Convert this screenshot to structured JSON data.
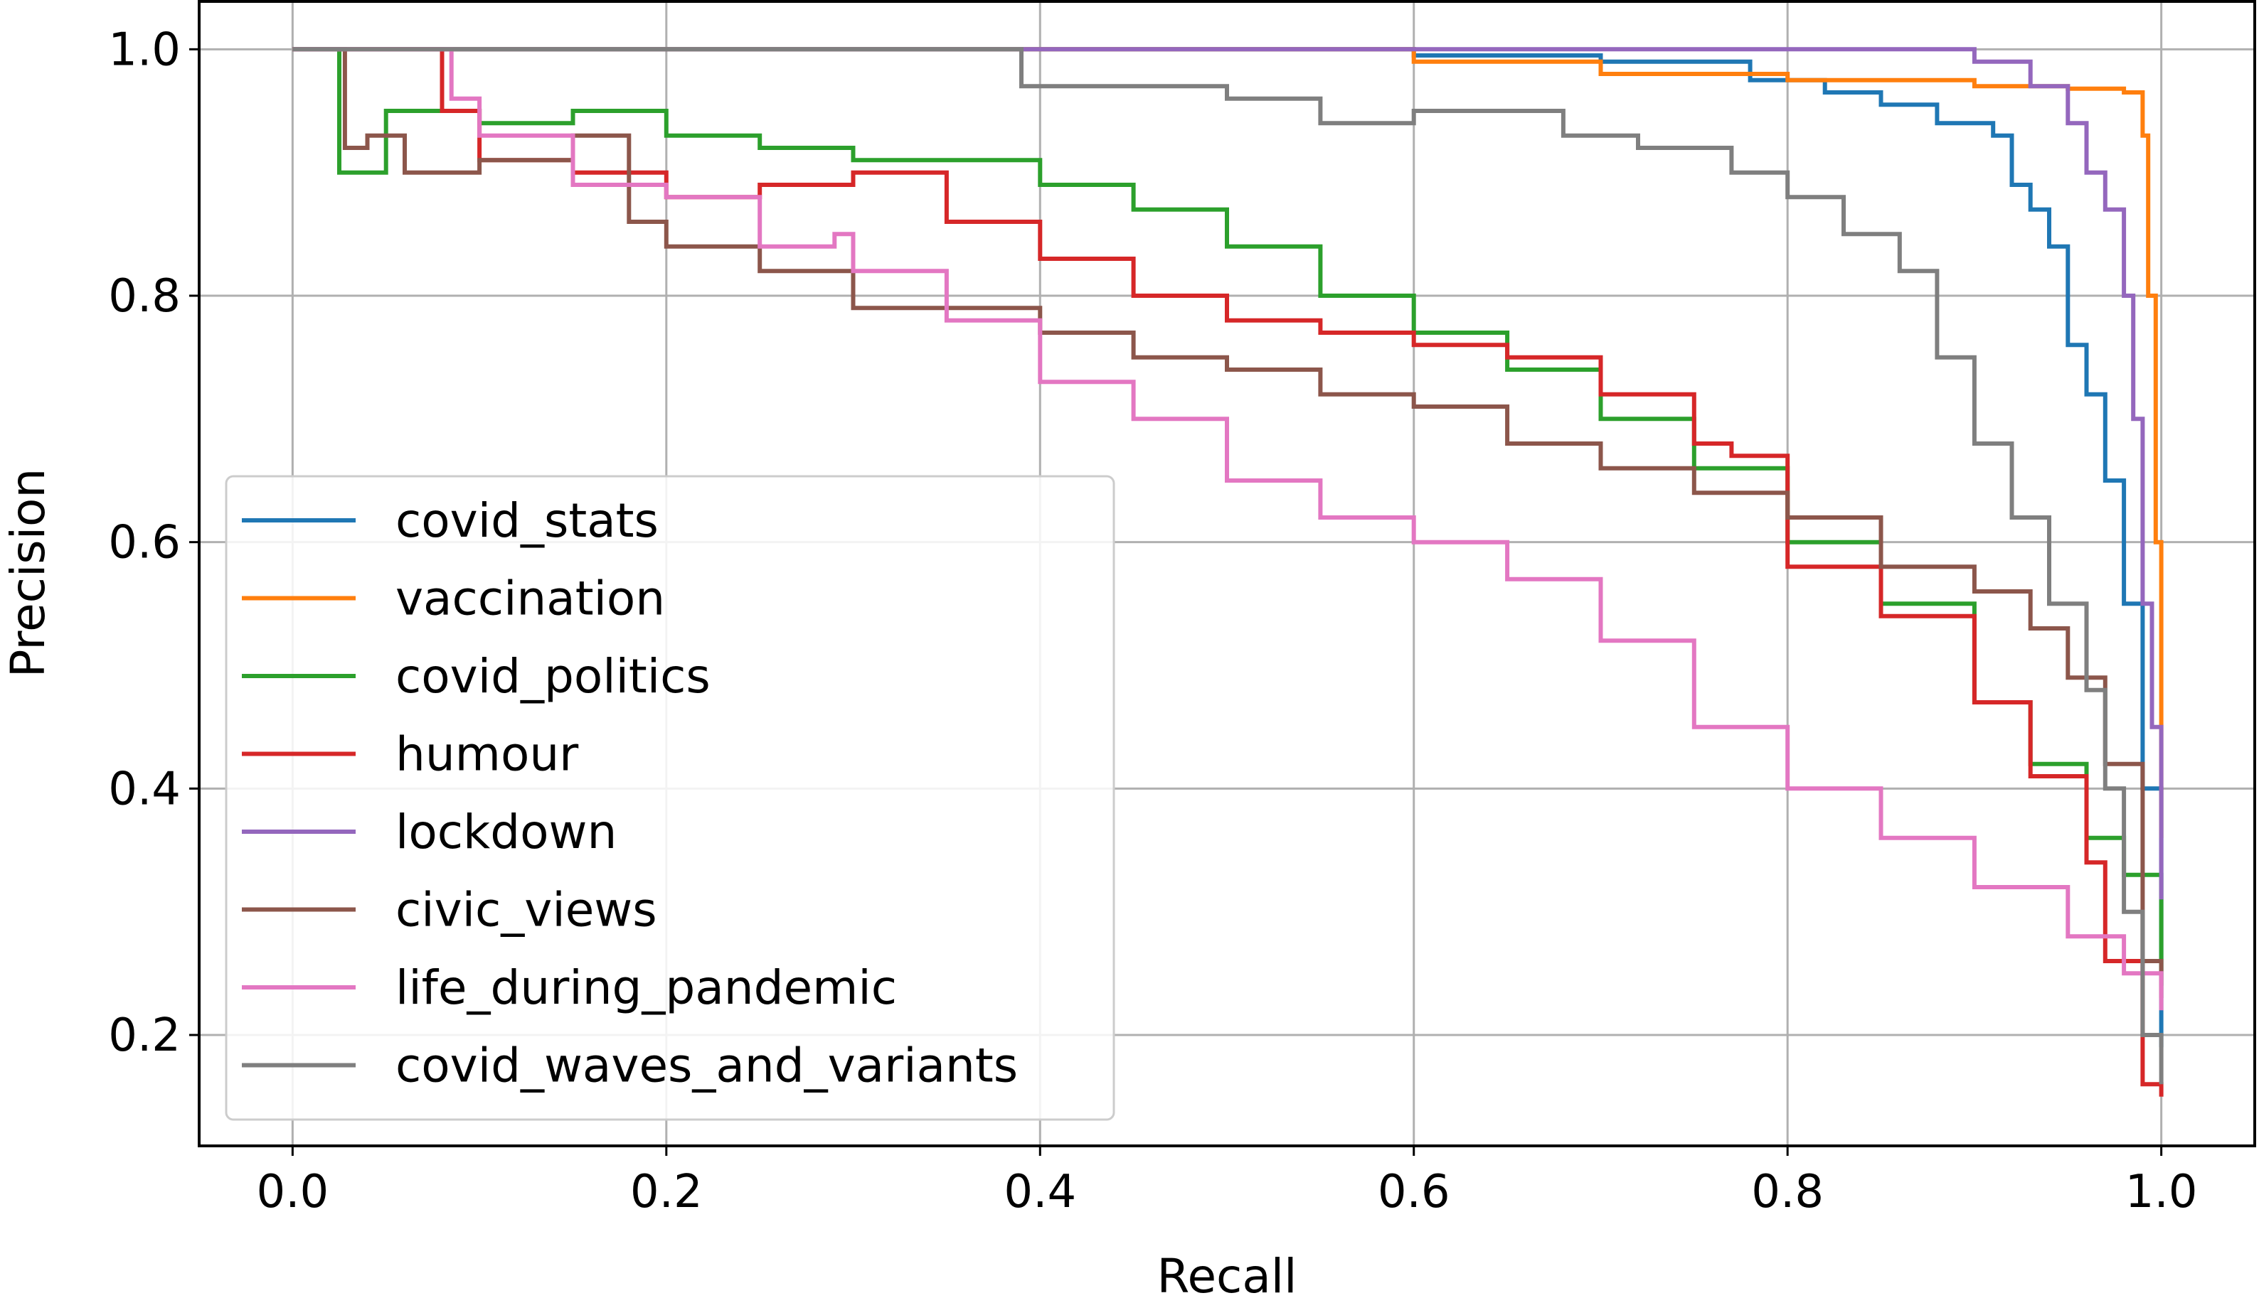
{
  "chart_data": {
    "type": "line",
    "title": "",
    "xlabel": "Recall",
    "ylabel": "Precision",
    "xlim": [
      -0.05,
      1.05
    ],
    "ylim": [
      0.11,
      1.04
    ],
    "xticks": [
      "0.0",
      "0.2",
      "0.4",
      "0.6",
      "0.8",
      "1.0"
    ],
    "xtick_values": [
      0.0,
      0.2,
      0.4,
      0.6,
      0.8,
      1.0
    ],
    "yticks": [
      "0.2",
      "0.4",
      "0.6",
      "0.8",
      "1.0"
    ],
    "ytick_values": [
      0.2,
      0.4,
      0.6,
      0.8,
      1.0
    ],
    "grid": true,
    "legend_position": "lower-left",
    "series": [
      {
        "name": "covid_stats",
        "color": "#1f77b4",
        "x": [
          0.0,
          0.3,
          0.6,
          0.7,
          0.78,
          0.82,
          0.85,
          0.88,
          0.91,
          0.92,
          0.93,
          0.94,
          0.95,
          0.96,
          0.97,
          0.98,
          0.99,
          1.0
        ],
        "y": [
          1.0,
          1.0,
          0.995,
          0.99,
          0.975,
          0.965,
          0.955,
          0.94,
          0.93,
          0.89,
          0.87,
          0.84,
          0.76,
          0.72,
          0.65,
          0.55,
          0.4,
          0.19
        ]
      },
      {
        "name": "vaccination",
        "color": "#ff7f0e",
        "x": [
          0.0,
          0.4,
          0.6,
          0.7,
          0.8,
          0.9,
          0.95,
          0.98,
          0.99,
          0.993,
          0.997,
          1.0
        ],
        "y": [
          1.0,
          1.0,
          0.99,
          0.98,
          0.975,
          0.97,
          0.968,
          0.965,
          0.93,
          0.8,
          0.6,
          0.36
        ]
      },
      {
        "name": "covid_politics",
        "color": "#2ca02c",
        "x": [
          0.0,
          0.025,
          0.025,
          0.05,
          0.1,
          0.15,
          0.2,
          0.25,
          0.3,
          0.4,
          0.45,
          0.5,
          0.55,
          0.6,
          0.65,
          0.7,
          0.75,
          0.8,
          0.85,
          0.9,
          0.93,
          0.96,
          0.98,
          1.0
        ],
        "y": [
          1.0,
          1.0,
          0.9,
          0.95,
          0.94,
          0.95,
          0.93,
          0.92,
          0.91,
          0.89,
          0.87,
          0.84,
          0.8,
          0.77,
          0.74,
          0.7,
          0.66,
          0.6,
          0.55,
          0.47,
          0.42,
          0.36,
          0.33,
          0.24
        ]
      },
      {
        "name": "humour",
        "color": "#d62728",
        "x": [
          0.0,
          0.08,
          0.08,
          0.1,
          0.15,
          0.2,
          0.25,
          0.3,
          0.35,
          0.4,
          0.45,
          0.5,
          0.55,
          0.6,
          0.65,
          0.7,
          0.75,
          0.77,
          0.8,
          0.85,
          0.9,
          0.93,
          0.96,
          0.97,
          0.99,
          1.0
        ],
        "y": [
          1.0,
          1.0,
          0.95,
          0.91,
          0.9,
          0.88,
          0.89,
          0.9,
          0.86,
          0.83,
          0.8,
          0.78,
          0.77,
          0.76,
          0.75,
          0.72,
          0.68,
          0.67,
          0.58,
          0.54,
          0.47,
          0.41,
          0.34,
          0.26,
          0.16,
          0.15
        ]
      },
      {
        "name": "lockdown",
        "color": "#9467bd",
        "x": [
          0.0,
          0.5,
          0.86,
          0.9,
          0.93,
          0.95,
          0.96,
          0.97,
          0.98,
          0.985,
          0.99,
          0.995,
          1.0
        ],
        "y": [
          1.0,
          1.0,
          1.0,
          0.99,
          0.97,
          0.94,
          0.9,
          0.87,
          0.8,
          0.7,
          0.55,
          0.45,
          0.31
        ]
      },
      {
        "name": "civic_views",
        "color": "#8c564b",
        "x": [
          0.0,
          0.028,
          0.028,
          0.04,
          0.06,
          0.1,
          0.15,
          0.18,
          0.2,
          0.25,
          0.3,
          0.4,
          0.45,
          0.5,
          0.55,
          0.6,
          0.65,
          0.7,
          0.75,
          0.8,
          0.85,
          0.9,
          0.93,
          0.95,
          0.97,
          0.99,
          1.0
        ],
        "y": [
          1.0,
          1.0,
          0.92,
          0.93,
          0.9,
          0.91,
          0.93,
          0.86,
          0.84,
          0.82,
          0.79,
          0.77,
          0.75,
          0.74,
          0.72,
          0.71,
          0.68,
          0.66,
          0.64,
          0.62,
          0.58,
          0.56,
          0.53,
          0.49,
          0.42,
          0.26,
          0.23
        ]
      },
      {
        "name": "life_during_pandemic",
        "color": "#e377c2",
        "x": [
          0.0,
          0.085,
          0.085,
          0.1,
          0.15,
          0.2,
          0.25,
          0.29,
          0.3,
          0.35,
          0.4,
          0.45,
          0.5,
          0.55,
          0.6,
          0.63,
          0.65,
          0.7,
          0.75,
          0.8,
          0.85,
          0.9,
          0.95,
          0.98,
          1.0
        ],
        "y": [
          1.0,
          1.0,
          0.96,
          0.93,
          0.89,
          0.88,
          0.84,
          0.85,
          0.82,
          0.78,
          0.73,
          0.7,
          0.65,
          0.62,
          0.6,
          0.6,
          0.57,
          0.52,
          0.45,
          0.4,
          0.36,
          0.32,
          0.28,
          0.25,
          0.22
        ]
      },
      {
        "name": "covid_waves_and_variants",
        "color": "#7f7f7f",
        "x": [
          0.0,
          0.35,
          0.39,
          0.5,
          0.55,
          0.6,
          0.68,
          0.72,
          0.77,
          0.8,
          0.83,
          0.86,
          0.88,
          0.9,
          0.92,
          0.94,
          0.96,
          0.97,
          0.98,
          0.99,
          1.0
        ],
        "y": [
          1.0,
          1.0,
          0.97,
          0.96,
          0.94,
          0.95,
          0.93,
          0.92,
          0.9,
          0.88,
          0.85,
          0.82,
          0.75,
          0.68,
          0.62,
          0.55,
          0.48,
          0.4,
          0.3,
          0.2,
          0.16
        ]
      }
    ]
  }
}
